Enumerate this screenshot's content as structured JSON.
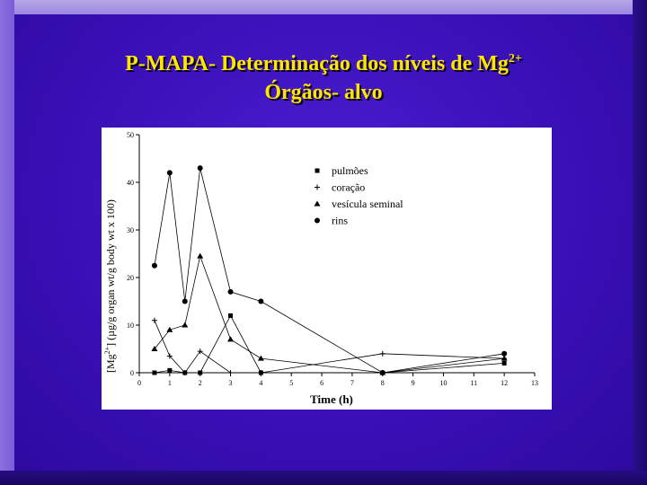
{
  "slide": {
    "title_line1": "P-MAPA- Determinação dos níveis de Mg",
    "title_line1_sup": "2+",
    "title_line2": "Órgãos- alvo",
    "title_color": "#ffe600"
  },
  "chart_data": {
    "type": "line",
    "xlabel": "Time (h)",
    "ylabel_prefix": "[Mg",
    "ylabel_sup": "2+",
    "ylabel_suffix": "] (µg/g organ wt/g body wt x 100)",
    "xlim": [
      0,
      13
    ],
    "ylim": [
      0,
      50
    ],
    "x_ticks": [
      0,
      1,
      2,
      3,
      4,
      5,
      6,
      7,
      8,
      9,
      10,
      11,
      12,
      13
    ],
    "y_ticks": [
      0,
      10,
      20,
      30,
      40,
      50
    ],
    "grid": false,
    "legend_position": "top-center",
    "series": [
      {
        "name": "pulmões",
        "marker": "square",
        "x": [
          0.5,
          1,
          1.5,
          2,
          3,
          4,
          8,
          12
        ],
        "y": [
          0,
          0.5,
          0,
          0,
          12,
          0,
          0,
          2
        ]
      },
      {
        "name": "coração",
        "marker": "plus",
        "x": [
          0.5,
          1,
          1.5,
          2,
          3,
          4,
          8,
          12
        ],
        "y": [
          11,
          3.5,
          0,
          4.5,
          0,
          0,
          4,
          3
        ]
      },
      {
        "name": "vesícula seminal",
        "marker": "triangle",
        "x": [
          0.5,
          1,
          1.5,
          2,
          3,
          4,
          8,
          12
        ],
        "y": [
          5,
          9,
          10,
          24.5,
          7,
          3,
          0,
          3
        ]
      },
      {
        "name": "rins",
        "marker": "circle",
        "x": [
          0.5,
          1,
          1.5,
          2,
          3,
          4,
          8,
          12
        ],
        "y": [
          22.5,
          42,
          15,
          43,
          17,
          15,
          0,
          4
        ]
      }
    ]
  }
}
